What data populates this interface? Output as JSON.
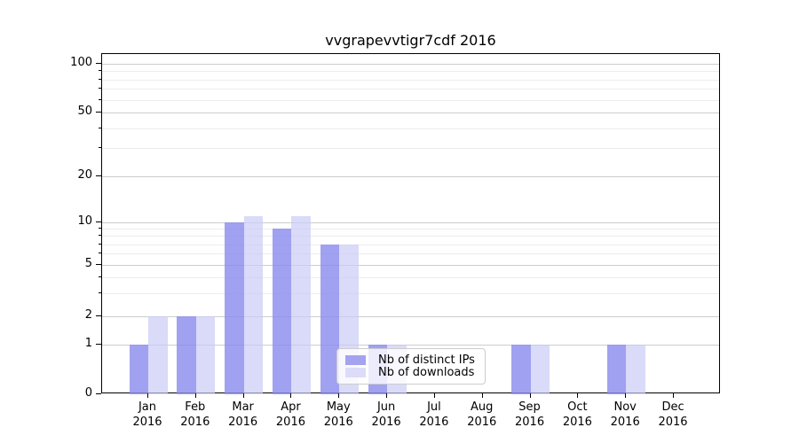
{
  "title": "vvgrapevvtigr7cdf 2016",
  "chart_data": {
    "type": "bar",
    "title": "vvgrapevvtigr7cdf 2016",
    "x_months": [
      "Jan",
      "Feb",
      "Mar",
      "Apr",
      "May",
      "Jun",
      "Jul",
      "Aug",
      "Sep",
      "Oct",
      "Nov",
      "Dec"
    ],
    "x_year": "2016",
    "categories": [
      "Jan 2016",
      "Feb 2016",
      "Mar 2016",
      "Apr 2016",
      "May 2016",
      "Jun 2016",
      "Jul 2016",
      "Aug 2016",
      "Sep 2016",
      "Oct 2016",
      "Nov 2016",
      "Dec 2016"
    ],
    "series": [
      {
        "name": "Nb of distinct IPs",
        "color": "#a3a3f0",
        "fill_rgba": "rgba(140,140,238,0.82)",
        "values": [
          1,
          2,
          10,
          9,
          7,
          1,
          0,
          0,
          1,
          0,
          1,
          0
        ]
      },
      {
        "name": "Nb of downloads",
        "color": "#dcdcf8",
        "fill_rgba": "rgba(202,202,246,0.70)",
        "values": [
          2,
          2,
          11,
          11,
          7,
          1,
          0,
          0,
          1,
          0,
          1,
          0
        ]
      }
    ],
    "y_axis": {
      "scale": "symlog",
      "ticks": [
        0,
        1,
        2,
        5,
        10,
        20,
        50,
        100
      ],
      "minor_ticks": [
        3,
        4,
        6,
        7,
        8,
        9,
        30,
        40,
        60,
        70,
        80,
        90
      ],
      "range": [
        0,
        100
      ]
    },
    "grid": true,
    "legend": {
      "position": "bottom-center-inside",
      "entries": [
        "Nb of distinct IPs",
        "Nb of downloads"
      ]
    },
    "colors": {
      "major_grid": "#cccccc",
      "minor_grid": "#ececec",
      "axis": "#000000",
      "background": "#ffffff"
    }
  }
}
